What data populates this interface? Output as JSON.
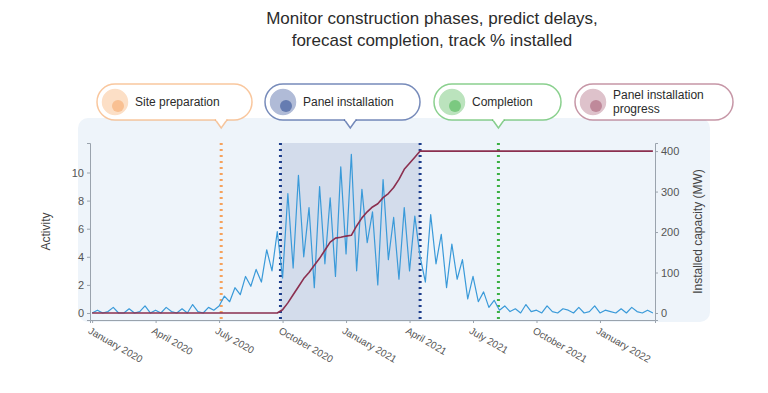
{
  "chart_data": {
    "type": "line",
    "title": [
      "Monitor construction phases, predict delays,",
      "forecast completion, track % installed"
    ],
    "x": [
      0,
      0.25,
      0.5,
      0.75,
      1,
      1.25,
      1.5,
      1.75,
      2,
      2.25,
      2.5,
      2.75,
      3,
      3.25,
      3.5,
      3.75,
      4,
      4.25,
      4.5,
      4.75,
      5,
      5.25,
      5.5,
      5.75,
      6,
      6.25,
      6.5,
      6.75,
      7,
      7.25,
      7.5,
      7.75,
      8,
      8.25,
      8.5,
      8.75,
      9,
      9.25,
      9.5,
      9.75,
      10,
      10.25,
      10.5,
      10.75,
      11,
      11.25,
      11.5,
      11.75,
      12,
      12.25,
      12.5,
      12.75,
      13,
      13.25,
      13.5,
      13.75,
      14,
      14.25,
      14.5,
      14.75,
      15,
      15.25,
      15.5,
      15.75,
      16,
      16.25,
      16.5,
      16.75,
      17,
      17.25,
      17.5,
      17.75,
      18,
      18.25,
      18.5,
      18.75,
      19,
      19.25,
      19.5,
      19.75,
      20,
      20.25,
      20.5,
      20.75,
      21,
      21.25,
      21.5,
      21.75,
      22,
      22.25,
      22.5,
      22.75,
      23,
      23.25,
      23.5,
      23.75,
      24,
      24.25,
      24.5,
      24.75,
      25,
      25.25,
      25.5,
      25.75,
      26,
      26.25,
      26.5
    ],
    "xlim": [
      -0.1,
      26.6
    ],
    "xticks": [
      {
        "value": 0,
        "label": "January 2020"
      },
      {
        "value": 3,
        "label": "April 2020"
      },
      {
        "value": 6,
        "label": "July 2020"
      },
      {
        "value": 9,
        "label": "October 2020"
      },
      {
        "value": 12,
        "label": "January 2021"
      },
      {
        "value": 15,
        "label": "April 2021"
      },
      {
        "value": 18,
        "label": "July 2021"
      },
      {
        "value": 21,
        "label": "October 2021"
      },
      {
        "value": 24,
        "label": "January 2022"
      }
    ],
    "ylim": [
      -0.5,
      12.1
    ],
    "yticks": [
      0,
      2,
      4,
      6,
      8,
      10
    ],
    "y_label": "Activity",
    "y2lim": [
      -17.3,
      420
    ],
    "y2ticks": [
      0,
      100,
      200,
      300,
      400
    ],
    "y2_label": "Installed capacity (MW)",
    "grid": false,
    "series": [
      {
        "color": "#3a9ad9",
        "values": [
          0,
          0.2,
          0,
          0.1,
          0.4,
          0,
          0,
          0.3,
          0,
          0.1,
          0.5,
          0,
          0.2,
          0,
          0.4,
          0.1,
          0,
          0.3,
          0,
          0.6,
          0.1,
          0,
          0.4,
          0.2,
          0.5,
          1.2,
          0.8,
          1.8,
          1.3,
          2.6,
          1.9,
          3.1,
          2.2,
          4.5,
          3.0,
          5.8,
          2.5,
          8.5,
          3.2,
          9.8,
          4.0,
          7.5,
          1.8,
          9.0,
          3.5,
          8.2,
          2.6,
          10.4,
          4.2,
          11.3,
          3.0,
          8.8,
          5.0,
          7.2,
          2.0,
          9.5,
          3.8,
          6.8,
          2.4,
          7.5,
          3.0,
          6.9,
          4.0,
          2.2,
          7.0,
          3.5,
          5.6,
          1.8,
          4.9,
          2.4,
          3.8,
          1.0,
          2.6,
          0.8,
          1.5,
          0.4,
          0.9,
          0.2,
          0.5,
          0.1,
          0.3,
          0,
          0.6,
          0.1,
          0.2,
          0,
          0.5,
          0.1,
          0,
          0.3,
          0.2,
          0,
          0.4,
          0,
          0.1,
          0.5,
          0,
          0.2,
          0.1,
          0,
          0.3,
          0,
          0.4,
          0.1,
          0,
          0.2,
          0
        ]
      },
      {
        "color": "#8b2f4f",
        "axis": "y2",
        "values": [
          0,
          0,
          0,
          0,
          0,
          0,
          0,
          0,
          0,
          0,
          0,
          0,
          0,
          0,
          0,
          0,
          0,
          0,
          0,
          0,
          0,
          0,
          0,
          0,
          0,
          0,
          0,
          0,
          0,
          0,
          0,
          0,
          0,
          0,
          0,
          0,
          8,
          25,
          45,
          65,
          85,
          100,
          118,
          135,
          155,
          175,
          185,
          187,
          190,
          192,
          215,
          235,
          250,
          262,
          270,
          285,
          295,
          310,
          330,
          355,
          370,
          385,
          400,
          400,
          400,
          400,
          400,
          400,
          400,
          400,
          400,
          400,
          400,
          400,
          400,
          400,
          400,
          400,
          400,
          400,
          400,
          400,
          400,
          400,
          400,
          400,
          400,
          400,
          400,
          400,
          400,
          400,
          400,
          400,
          400,
          400,
          400,
          400,
          400,
          400,
          400,
          400,
          400,
          400,
          400,
          400,
          400
        ]
      }
    ],
    "annotations": [
      {
        "text": "Site preparation",
        "x": 6.1,
        "color": "#f5a25d"
      },
      {
        "text": "Panel installation",
        "x": [
          8.9,
          15.5
        ],
        "color": "#1c3d8c"
      },
      {
        "text": "Completion",
        "x": 19.2,
        "color": "#3cb043"
      },
      {
        "text": "Panel installation progress",
        "color": "#a0506a"
      }
    ]
  }
}
